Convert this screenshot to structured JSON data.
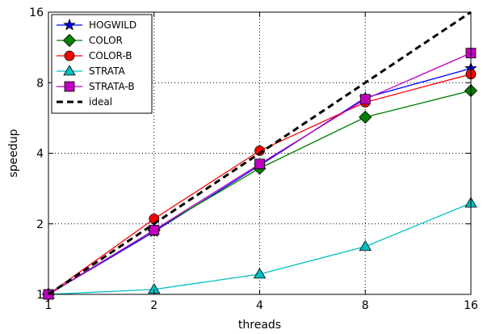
{
  "chart_data": {
    "type": "line",
    "xlabel": "threads",
    "ylabel": "speedup",
    "xscale": "log2",
    "yscale": "log2",
    "xlim": [
      1,
      16
    ],
    "ylim": [
      1,
      16
    ],
    "xticks": [
      1,
      2,
      4,
      8,
      16
    ],
    "yticks": [
      1,
      2,
      4,
      8,
      16
    ],
    "grid": "dotted",
    "legend_position": "top-left",
    "x": [
      1,
      2,
      4,
      8,
      16
    ],
    "series": [
      {
        "name": "HOGWILD",
        "color": "#0000ff",
        "marker": "star",
        "values": [
          1.0,
          1.85,
          3.55,
          6.9,
          9.2
        ]
      },
      {
        "name": "COLOR",
        "color": "#008000",
        "marker": "diamond",
        "values": [
          1.0,
          1.88,
          3.45,
          5.7,
          7.4
        ]
      },
      {
        "name": "COLOR-B",
        "color": "#ff0000",
        "marker": "circle",
        "values": [
          1.0,
          2.1,
          4.1,
          6.6,
          8.7
        ]
      },
      {
        "name": "STRATA",
        "color": "#00bfbf",
        "marker": "triangle",
        "values": [
          1.0,
          1.05,
          1.22,
          1.6,
          2.45
        ]
      },
      {
        "name": "STRATA-B",
        "color": "#bf00bf",
        "marker": "square",
        "values": [
          1.0,
          1.88,
          3.6,
          6.8,
          10.7
        ]
      },
      {
        "name": "ideal",
        "color": "#000000",
        "marker": "none",
        "dashed": true,
        "values": [
          1,
          2,
          4,
          8,
          16
        ]
      }
    ]
  }
}
